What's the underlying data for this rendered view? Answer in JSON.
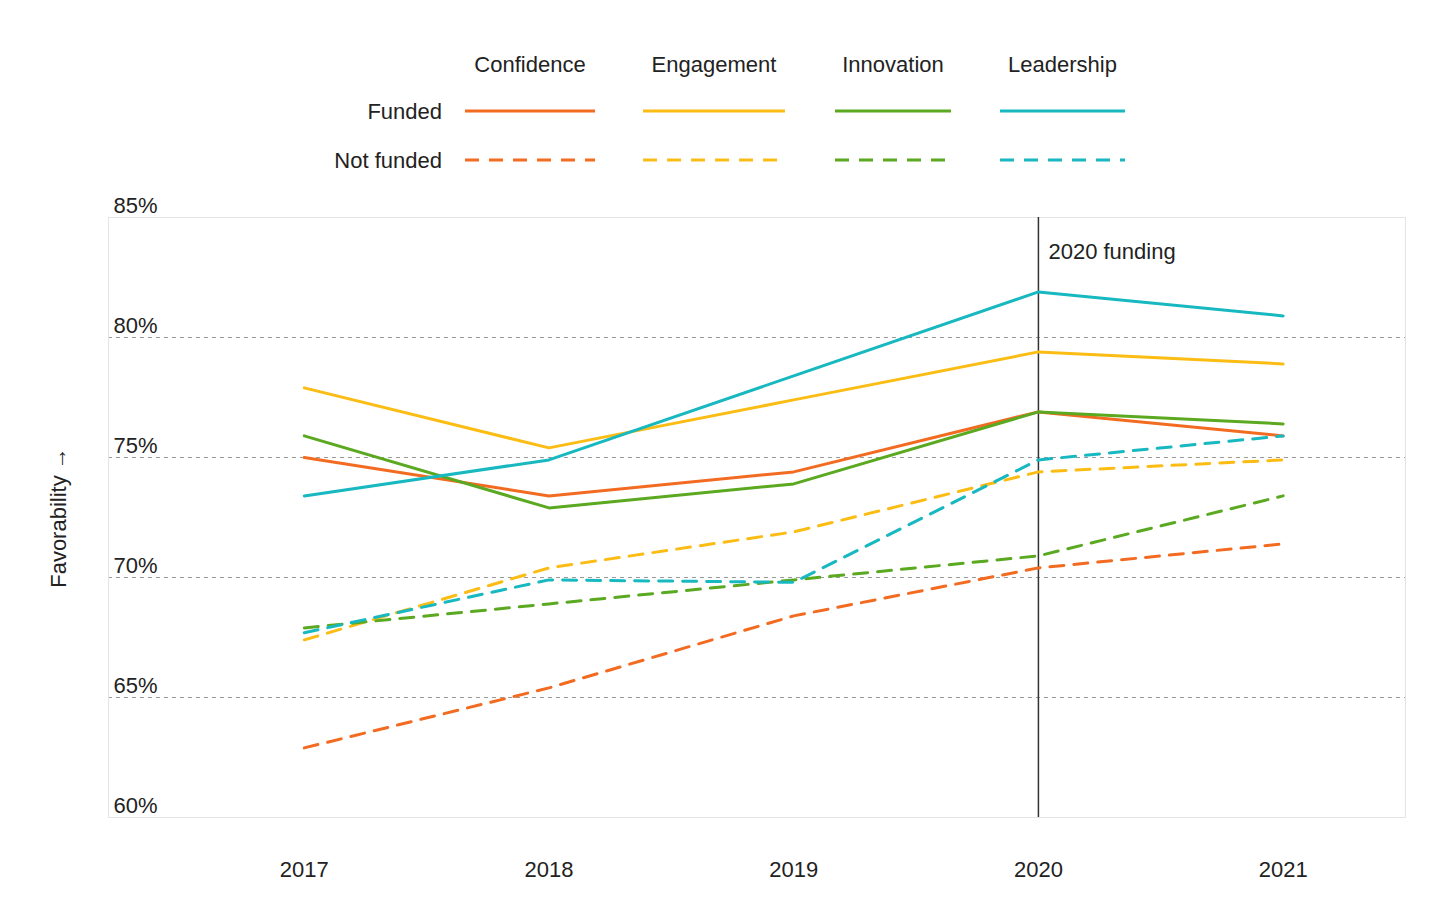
{
  "chart_data": {
    "type": "line",
    "x": [
      2017,
      2018,
      2019,
      2020,
      2021
    ],
    "xlim": [
      2016.2,
      2021.5
    ],
    "xticks": [
      2017,
      2018,
      2019,
      2020,
      2021
    ],
    "ylabel": "Favorability",
    "ylim": [
      60,
      85
    ],
    "yticks": [
      {
        "value": 60,
        "label": "60%"
      },
      {
        "value": 65,
        "label": "65%"
      },
      {
        "value": 70,
        "label": "70%"
      },
      {
        "value": 75,
        "label": "75%"
      },
      {
        "value": 80,
        "label": "80%"
      },
      {
        "value": 85,
        "label": "85%"
      }
    ],
    "grid": true,
    "legend": "top",
    "annotations": [
      {
        "x": 2020,
        "text": "2020 funding"
      }
    ],
    "series": [
      {
        "name": "Confidence",
        "group": "Funded",
        "color": "#f26b21",
        "line_style": "solid",
        "values": [
          75.0,
          73.4,
          74.4,
          76.9,
          75.9
        ]
      },
      {
        "name": "Engagement",
        "group": "Funded",
        "color": "#fbbc14",
        "line_style": "solid",
        "values": [
          77.9,
          75.4,
          77.4,
          79.4,
          78.9
        ]
      },
      {
        "name": "Innovation",
        "group": "Funded",
        "color": "#5aa921",
        "line_style": "solid",
        "values": [
          75.9,
          72.9,
          73.9,
          76.9,
          76.4
        ]
      },
      {
        "name": "Leadership",
        "group": "Funded",
        "color": "#17b8c0",
        "line_style": "solid",
        "values": [
          73.4,
          74.9,
          78.4,
          81.9,
          80.9
        ]
      },
      {
        "name": "Confidence",
        "group": "Not funded",
        "color": "#f26b21",
        "line_style": "dashed",
        "values": [
          62.9,
          65.4,
          68.4,
          70.4,
          71.4
        ]
      },
      {
        "name": "Engagement",
        "group": "Not funded",
        "color": "#fbbc14",
        "line_style": "dashed",
        "values": [
          67.4,
          70.4,
          71.9,
          74.4,
          74.9
        ]
      },
      {
        "name": "Innovation",
        "group": "Not funded",
        "color": "#5aa921",
        "line_style": "dashed",
        "values": [
          67.9,
          68.9,
          69.9,
          70.9,
          73.4
        ]
      },
      {
        "name": "Leadership",
        "group": "Not funded",
        "color": "#17b8c0",
        "line_style": "dashed",
        "values": [
          67.7,
          69.9,
          69.8,
          74.9,
          75.9
        ]
      }
    ]
  }
}
